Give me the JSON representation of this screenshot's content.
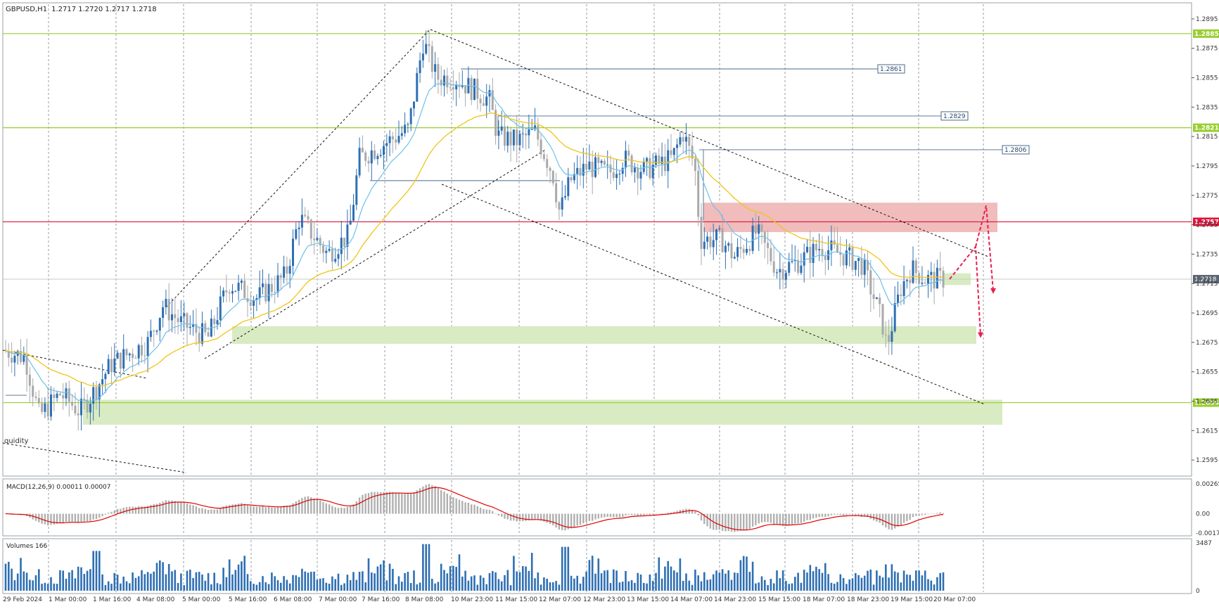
{
  "window": {
    "symbol_timeframe": "GBPUSD,H1",
    "ohlc": "1.2717 1.2720 1.2717 1.2718"
  },
  "main_chart": {
    "price_range": [
      1.2585,
      1.2905
    ],
    "price_ticks": [
      "1.2895",
      "1.2875",
      "1.2855",
      "1.2835",
      "1.2815",
      "1.2795",
      "1.2775",
      "1.2755",
      "1.2735",
      "1.2715",
      "1.2695",
      "1.2675",
      "1.2655",
      "1.2635",
      "1.2615",
      "1.2595"
    ],
    "current_price": "1.2718",
    "partial_label": "quidity"
  },
  "levels": [
    {
      "name": "resistance-1",
      "value": 1.2885,
      "label": "1.2885",
      "color": "#9acd32"
    },
    {
      "name": "resistance-2",
      "value": 1.2821,
      "label": "1.2821",
      "color": "#9acd32"
    },
    {
      "name": "key-level",
      "value": 1.2757,
      "label": "1.2757",
      "color": "#dc143c"
    },
    {
      "name": "support-1",
      "value": 1.2634,
      "label": "1.2634",
      "color": "#9acd32"
    }
  ],
  "ray_labels": [
    {
      "name": "ray-1",
      "value": 1.2861,
      "label": "1.2861"
    },
    {
      "name": "ray-2",
      "value": 1.2829,
      "label": "1.2829"
    },
    {
      "name": "ray-3",
      "value": 1.2806,
      "label": "1.2806"
    }
  ],
  "time_labels": [
    "29 Feb 2024",
    "1 Mar 00:00",
    "1 Mar 16:00",
    "4 Mar 08:00",
    "5 Mar 00:00",
    "5 Mar 16:00",
    "6 Mar 08:00",
    "7 Mar 00:00",
    "7 Mar 16:00",
    "8 Mar 08:00",
    "10 Mar 23:00",
    "11 Mar 15:00",
    "12 Mar 07:00",
    "12 Mar 23:00",
    "13 Mar 15:00",
    "14 Mar 07:00",
    "14 Mar 23:00",
    "15 Mar 15:00",
    "18 Mar 07:00",
    "18 Mar 23:00",
    "19 Mar 15:00",
    "20 Mar 07:00"
  ],
  "macd_panel": {
    "title": "MACD(12,26,9) 0.00011 0.00007",
    "ticks": [
      "0.00265",
      "0.00",
      "-0.00171"
    ],
    "range": [
      -0.00171,
      0.00265
    ]
  },
  "volume_panel": {
    "title": "Volumes 166",
    "ticks": [
      "3487",
      "0"
    ],
    "max": 3487
  },
  "colors": {
    "bull_candle": "#2e6fb3",
    "bear_candle": "#a9a9a9",
    "ema_fast": "#6ec0e8",
    "ema_slow": "#f0c419",
    "macd_signal": "#e00000",
    "volume": "#2e6fb3",
    "zone_green": "#d8ebc2",
    "zone_red": "#f0bcbc",
    "arrow": "#e8204f"
  },
  "chart_data": {
    "type": "candlestick",
    "symbol": "GBPUSD",
    "timeframe": "H1",
    "categories": [
      "29 Feb 2024",
      "1 Mar 00:00",
      "1 Mar 16:00",
      "4 Mar 08:00",
      "5 Mar 00:00",
      "5 Mar 16:00",
      "6 Mar 08:00",
      "7 Mar 00:00",
      "7 Mar 16:00",
      "8 Mar 08:00",
      "10 Mar 23:00",
      "11 Mar 15:00",
      "12 Mar 07:00",
      "12 Mar 23:00",
      "13 Mar 15:00",
      "14 Mar 07:00",
      "14 Mar 23:00",
      "15 Mar 15:00",
      "18 Mar 07:00",
      "18 Mar 23:00",
      "19 Mar 15:00",
      "20 Mar 07:00"
    ],
    "series": [
      {
        "name": "GBPUSD,H1",
        "close_approx": [
          1.2668,
          1.264,
          1.266,
          1.27,
          1.268,
          1.272,
          1.2745,
          1.2745,
          1.28,
          1.2885,
          1.285,
          1.281,
          1.278,
          1.2795,
          1.279,
          1.2815,
          1.2735,
          1.273,
          1.2728,
          1.27,
          1.2725,
          1.2718
        ]
      }
    ],
    "ylim": [
      1.2585,
      1.2905
    ],
    "grid": true
  }
}
